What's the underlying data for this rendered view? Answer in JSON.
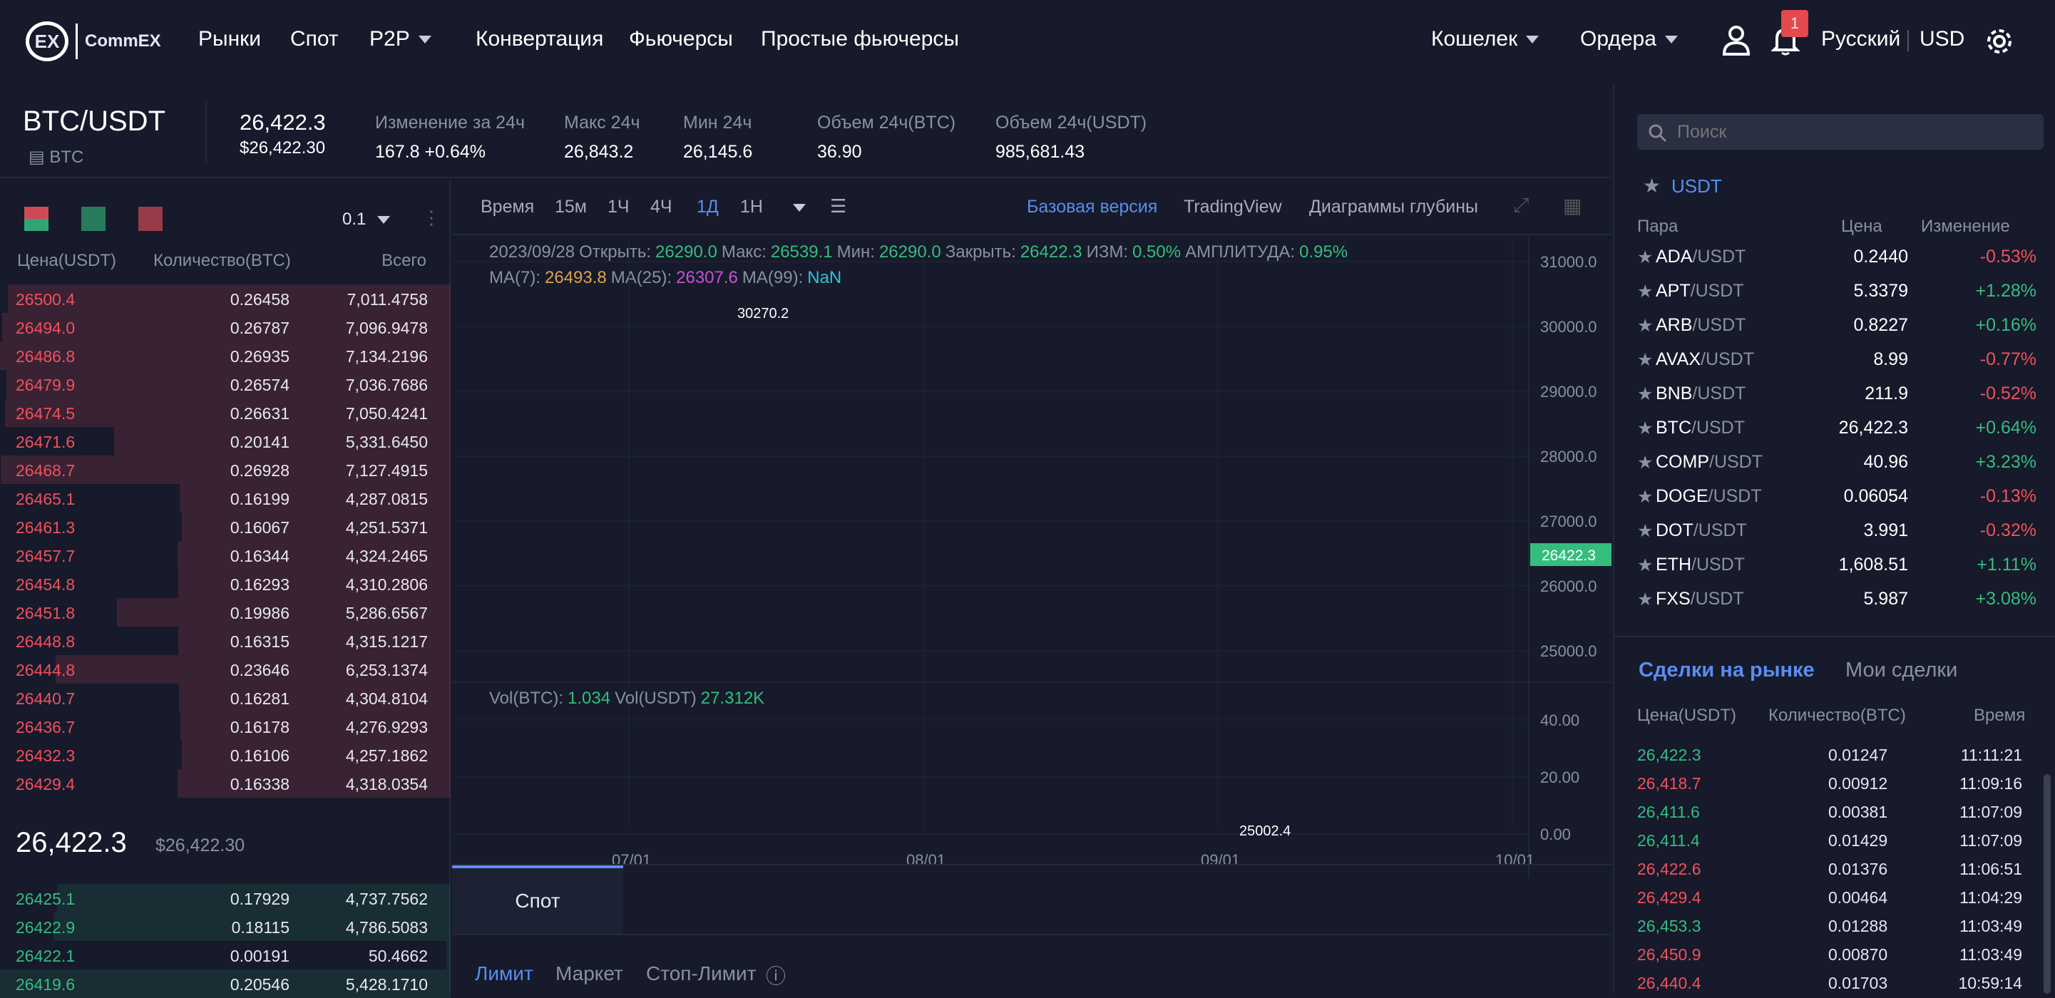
{
  "nav": {
    "brand": "CommEX",
    "logo_text": "EX",
    "items": [
      "Рынки",
      "Спот",
      "P2P",
      "Конвертация",
      "Фьючерсы",
      "Простые фьючерсы"
    ],
    "wallet": "Кошелек",
    "orders": "Ордера",
    "notif_count": "1",
    "lang": "Русский",
    "currency": "USD"
  },
  "ticker": {
    "pair": "BTC/USDT",
    "coin": "BTC",
    "price": "26,422.3",
    "price_usd": "$26,422.30",
    "change_label": "Изменение за 24ч",
    "change_val": "167.8 +0.64%",
    "high_label": "Макс 24ч",
    "high_val": "26,843.2",
    "low_label": "Мин 24ч",
    "low_val": "26,145.6",
    "vol_btc_label": "Объем 24ч(BTC)",
    "vol_btc_val": "36.90",
    "vol_usdt_label": "Объем 24ч(USDT)",
    "vol_usdt_val": "985,681.43"
  },
  "orderbook": {
    "step": "0.1",
    "h_price": "Цена(USDT)",
    "h_qty": "Количество(BTC)",
    "h_total": "Всего",
    "asks": [
      [
        "26500.4",
        "0.26458",
        "7,011.4758"
      ],
      [
        "26494.0",
        "0.26787",
        "7,096.9478"
      ],
      [
        "26486.8",
        "0.26935",
        "7,134.2196"
      ],
      [
        "26479.9",
        "0.26574",
        "7,036.7686"
      ],
      [
        "26474.5",
        "0.26631",
        "7,050.4241"
      ],
      [
        "26471.6",
        "0.20141",
        "5,331.6450"
      ],
      [
        "26468.7",
        "0.26928",
        "7,127.4915"
      ],
      [
        "26465.1",
        "0.16199",
        "4,287.0815"
      ],
      [
        "26461.3",
        "0.16067",
        "4,251.5371"
      ],
      [
        "26457.7",
        "0.16344",
        "4,324.2465"
      ],
      [
        "26454.8",
        "0.16293",
        "4,310.2806"
      ],
      [
        "26451.8",
        "0.19986",
        "5,286.6567"
      ],
      [
        "26448.8",
        "0.16315",
        "4,315.1217"
      ],
      [
        "26444.8",
        "0.23646",
        "6,253.1374"
      ],
      [
        "26440.7",
        "0.16281",
        "4,304.8104"
      ],
      [
        "26436.7",
        "0.16178",
        "4,276.9293"
      ],
      [
        "26432.3",
        "0.16106",
        "4,257.1862"
      ],
      [
        "26429.4",
        "0.16338",
        "4,318.0354"
      ]
    ],
    "last": "26,422.3",
    "last_usd": "$26,422.30",
    "bids": [
      [
        "26425.1",
        "0.17929",
        "4,737.7562"
      ],
      [
        "26422.9",
        "0.18115",
        "4,786.5083"
      ],
      [
        "26422.1",
        "0.00191",
        "50.4662"
      ],
      [
        "26419.6",
        "0.20546",
        "5,428.1710"
      ]
    ]
  },
  "chart": {
    "intervals": [
      "Время",
      "15м",
      "1Ч",
      "4Ч",
      "1Д",
      "1Н"
    ],
    "active": "1Д",
    "views": [
      "Базовая версия",
      "TradingView",
      "Диаграммы глубины"
    ],
    "info_line": {
      "date": "2023/09/28",
      "open_l": "Открыть:",
      "open": "26290.0",
      "max_l": "Макс:",
      "max": "26539.1",
      "min_l": "Мин:",
      "min": "26290.0",
      "close_l": "Закрыть:",
      "close": "26422.3",
      "chg_l": "ИЗМ:",
      "chg": "0.50%",
      "amp_l": "АМПЛИТУДА:",
      "amp": "0.95%"
    },
    "ma_line": {
      "ma7_l": "MA(7):",
      "ma7": "26493.8",
      "ma25_l": "MA(25):",
      "ma25": "26307.6",
      "ma99_l": "MA(99):",
      "ma99": "NaN"
    },
    "vol_line": {
      "vb_l": "Vol(BTC):",
      "vb": "1.034",
      "vu_l": "Vol(USDT)",
      "vu": "27.312K"
    },
    "yticks": [
      "31000.0",
      "30000.0",
      "29000.0",
      "28000.0",
      "27000.0",
      "26000.0",
      "25000.0"
    ],
    "vticks": [
      "40.00",
      "20.00",
      "0.00"
    ],
    "xticks": [
      "07/01",
      "08/01",
      "09/01",
      "10/01"
    ],
    "hi_label": "30270.2",
    "lo_label": "25002.4",
    "cur_tag": "26422.3",
    "colors": {
      "up": "#35bd7e",
      "down": "#f0515d",
      "ma7": "#e0a04b",
      "ma25": "#c653d3"
    }
  },
  "trade": {
    "tab": "Спот",
    "types": [
      "Лимит",
      "Маркет",
      "Стоп-Лимит"
    ]
  },
  "market": {
    "search_placeholder": "Поиск",
    "quote": "USDT",
    "h_pair": "Пара",
    "h_price": "Цена",
    "h_change": "Изменение",
    "rows": [
      [
        "ADA",
        "/USDT",
        "0.2440",
        "-0.53%"
      ],
      [
        "APT",
        "/USDT",
        "5.3379",
        "+1.28%"
      ],
      [
        "ARB",
        "/USDT",
        "0.8227",
        "+0.16%"
      ],
      [
        "AVAX",
        "/USDT",
        "8.99",
        "-0.77%"
      ],
      [
        "BNB",
        "/USDT",
        "211.9",
        "-0.52%"
      ],
      [
        "BTC",
        "/USDT",
        "26,422.3",
        "+0.64%"
      ],
      [
        "COMP",
        "/USDT",
        "40.96",
        "+3.23%"
      ],
      [
        "DOGE",
        "/USDT",
        "0.06054",
        "-0.13%"
      ],
      [
        "DOT",
        "/USDT",
        "3.991",
        "-0.32%"
      ],
      [
        "ETH",
        "/USDT",
        "1,608.51",
        "+1.11%"
      ],
      [
        "FXS",
        "/USDT",
        "5.987",
        "+3.08%"
      ]
    ]
  },
  "trades": {
    "tab_market": "Сделки на рынке",
    "tab_mine": "Мои сделки",
    "h_price": "Цена(USDT)",
    "h_qty": "Количество(BTC)",
    "h_time": "Время",
    "rows": [
      [
        "26,422.3",
        "0.01247",
        "11:11:21",
        "up"
      ],
      [
        "26,418.7",
        "0.00912",
        "11:09:16",
        "down"
      ],
      [
        "26,411.6",
        "0.00381",
        "11:07:09",
        "up"
      ],
      [
        "26,411.4",
        "0.01429",
        "11:07:09",
        "up"
      ],
      [
        "26,422.6",
        "0.01376",
        "11:06:51",
        "down"
      ],
      [
        "26,429.4",
        "0.00464",
        "11:04:29",
        "down"
      ],
      [
        "26,453.3",
        "0.01288",
        "11:03:49",
        "up"
      ],
      [
        "26,450.9",
        "0.00870",
        "11:03:49",
        "down"
      ],
      [
        "26,440.4",
        "0.01703",
        "10:59:14",
        "down"
      ]
    ]
  }
}
